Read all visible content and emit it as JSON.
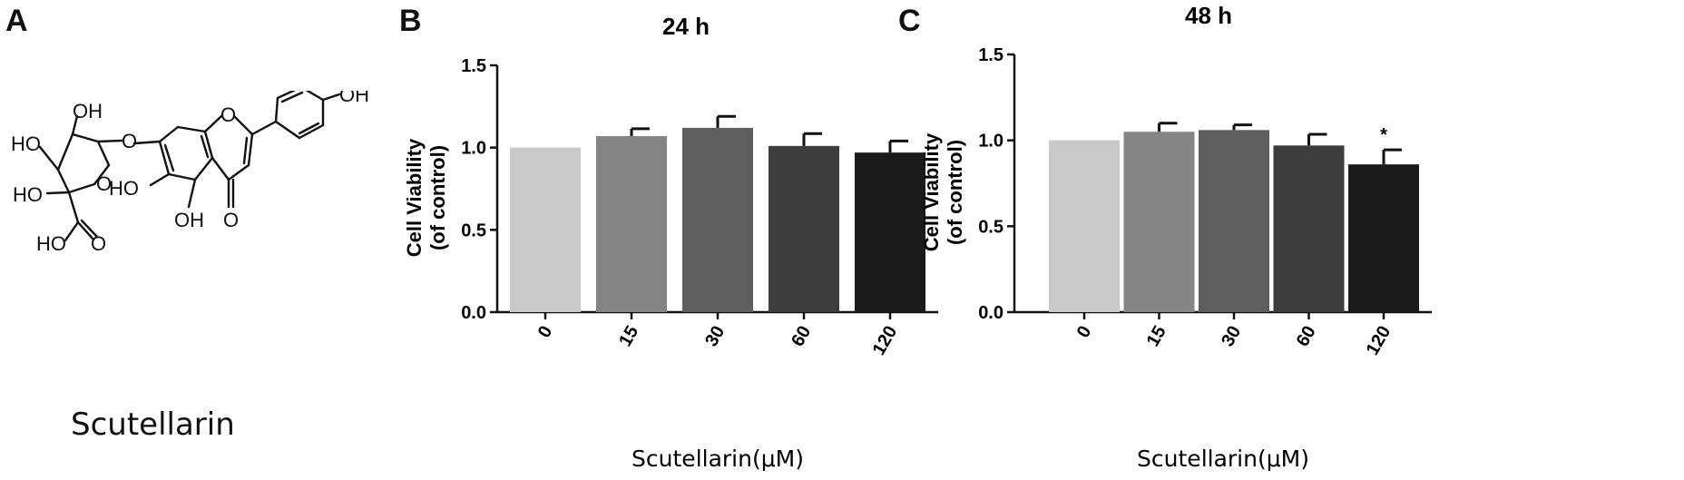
{
  "panels": {
    "a": {
      "letter": "A",
      "compound_name": "Scutellarin",
      "atoms": [
        "OH",
        "HO",
        "HO",
        "O",
        "O",
        "HO",
        "O",
        "HO",
        "O",
        "OH",
        "O",
        "O",
        "OH"
      ]
    },
    "b": {
      "letter": "B"
    },
    "c": {
      "letter": "C"
    }
  },
  "chart_data": [
    {
      "type": "bar",
      "title": "24 h",
      "ylabel": [
        "Cell Viability",
        "(of control)"
      ],
      "xlabel": "Scutellarin(μM)",
      "categories": [
        "0",
        "15",
        "30",
        "60",
        "120"
      ],
      "values": [
        1.0,
        1.07,
        1.12,
        1.01,
        0.97
      ],
      "errors": [
        0,
        0.045,
        0.07,
        0.075,
        0.07
      ],
      "significance": [
        "",
        "",
        "",
        "",
        ""
      ],
      "ylim": [
        0,
        1.5
      ],
      "yticks": [
        "0.0",
        "0.5",
        "1.0",
        "1.5"
      ],
      "colors": [
        "#c8c8c8",
        "#858585",
        "#5e5e5e",
        "#3d3d3d",
        "#1b1b1b"
      ]
    },
    {
      "type": "bar",
      "title": "48 h",
      "ylabel": [
        "Cell Viability",
        "(of control)"
      ],
      "xlabel": "Scutellarin(μM)",
      "categories": [
        "0",
        "15",
        "30",
        "60",
        "120"
      ],
      "values": [
        1.0,
        1.05,
        1.06,
        0.97,
        0.86
      ],
      "errors": [
        0,
        0.05,
        0.03,
        0.065,
        0.085
      ],
      "significance": [
        "",
        "",
        "",
        "",
        "*"
      ],
      "ylim": [
        0,
        1.5
      ],
      "yticks": [
        "0.0",
        "0.5",
        "1.0",
        "1.5"
      ],
      "colors": [
        "#c8c8c8",
        "#858585",
        "#5e5e5e",
        "#3d3d3d",
        "#1b1b1b"
      ]
    }
  ]
}
